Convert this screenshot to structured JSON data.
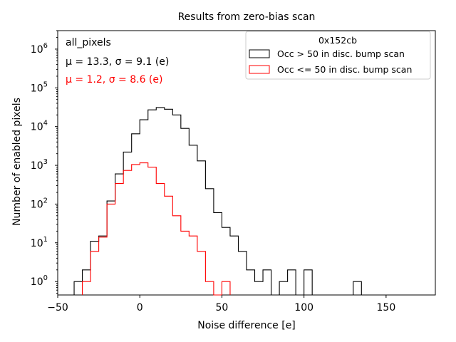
{
  "chart_data": {
    "type": "histogram",
    "title": "Results from zero-bias scan",
    "xlabel": "Noise difference [e]",
    "ylabel": "Number of enabled pixels",
    "xlim": [
      -50,
      180
    ],
    "ylim_log": [
      0.45,
      3000000
    ],
    "yscale": "log",
    "bin_width": 5,
    "xticks": [
      -50,
      0,
      50,
      100,
      150
    ],
    "xtick_labels": [
      "−50",
      "0",
      "50",
      "100",
      "150"
    ],
    "yticks": [
      1,
      10,
      100,
      1000,
      10000,
      100000,
      1000000
    ],
    "ytick_exponents": [
      "0",
      "1",
      "2",
      "3",
      "4",
      "5",
      "6"
    ],
    "annotations": {
      "group": "all_pixels",
      "series1_stats": "μ = 13.3, σ = 9.1 (e)",
      "series2_stats": "μ = 1.2, σ = 8.6 (e)"
    },
    "legend": {
      "title": "0x152cb",
      "position": "top-right"
    },
    "series": [
      {
        "name": "Occ > 50 in disc. bump scan",
        "color": "#000000",
        "bin_edges": [
          -40,
          -35,
          -30,
          -25,
          -20,
          -15,
          -10,
          -5,
          0,
          5,
          10,
          15,
          20,
          25,
          30,
          35,
          40,
          45,
          50,
          55,
          60,
          65,
          70,
          75,
          80,
          85,
          90,
          95,
          100,
          105,
          110,
          115,
          120,
          125,
          130,
          135
        ],
        "counts": [
          1,
          2,
          11,
          15,
          120,
          600,
          2200,
          6500,
          15000,
          27000,
          31000,
          28000,
          20000,
          9000,
          3300,
          1300,
          250,
          60,
          25,
          15,
          6,
          2,
          1,
          2,
          0,
          1,
          2,
          0,
          2,
          0,
          0,
          0,
          0,
          0,
          1
        ]
      },
      {
        "name": "Occ <= 50 in disc. bump scan",
        "color": "#ff0000",
        "bin_edges": [
          -35,
          -30,
          -25,
          -20,
          -15,
          -10,
          -5,
          0,
          5,
          10,
          15,
          20,
          25,
          30,
          35,
          40,
          45,
          50,
          55
        ],
        "counts": [
          1,
          6,
          14,
          100,
          340,
          740,
          1050,
          1160,
          900,
          340,
          160,
          50,
          20,
          15,
          6,
          1,
          0,
          1
        ]
      }
    ]
  }
}
